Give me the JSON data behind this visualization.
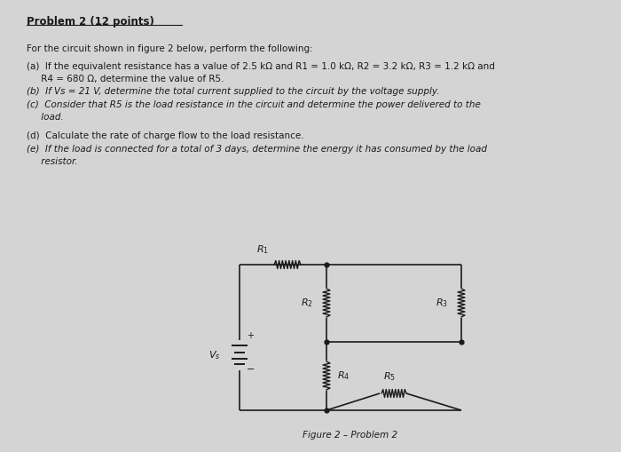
{
  "title": "Problem 2 (12 points)",
  "bg_color": "#d4d4d4",
  "text_color": "#1a1a1a",
  "body_lines": [
    {
      "text": "For the circuit shown in figure 2 below, perform the following:",
      "style": "normal",
      "indent": 0
    },
    {
      "text": "(a)  If the equivalent resistance has a value of 2.5 kΩ and R1 = 1.0 kΩ, R2 = 3.2 kΩ, R3 = 1.2 kΩ and",
      "style": "normal",
      "indent": 0
    },
    {
      "text": "     R4 = 680 Ω, determine the value of R5.",
      "style": "normal",
      "indent": 0
    },
    {
      "text": "(b)  If Vs = 21 V, determine the total current supplied to the circuit by the voltage supply.",
      "style": "italic",
      "indent": 0
    },
    {
      "text": "(c)  Consider that R5 is the load resistance in the circuit and determine the power delivered to the",
      "style": "italic",
      "indent": 0
    },
    {
      "text": "     load.",
      "style": "italic",
      "indent": 0
    },
    {
      "text": "(d)  Calculate the rate of charge flow to the load resistance.",
      "style": "normal_underline",
      "indent": 0
    },
    {
      "text": "(e)  If the load is connected for a total of 3 days, determine the energy it has consumed by the load",
      "style": "italic_underline",
      "indent": 0
    },
    {
      "text": "     resistor.",
      "style": "italic",
      "indent": 0
    }
  ],
  "figure_caption": "Figure 2 – Problem 2",
  "circuit": {
    "vs_label": "Vs",
    "r1_label": "R1",
    "r2_label": "R2",
    "r3_label": "R3",
    "r4_label": "R4",
    "r5_label": "R5"
  },
  "title_fontsize": 8.5,
  "body_fontsize": 7.5
}
